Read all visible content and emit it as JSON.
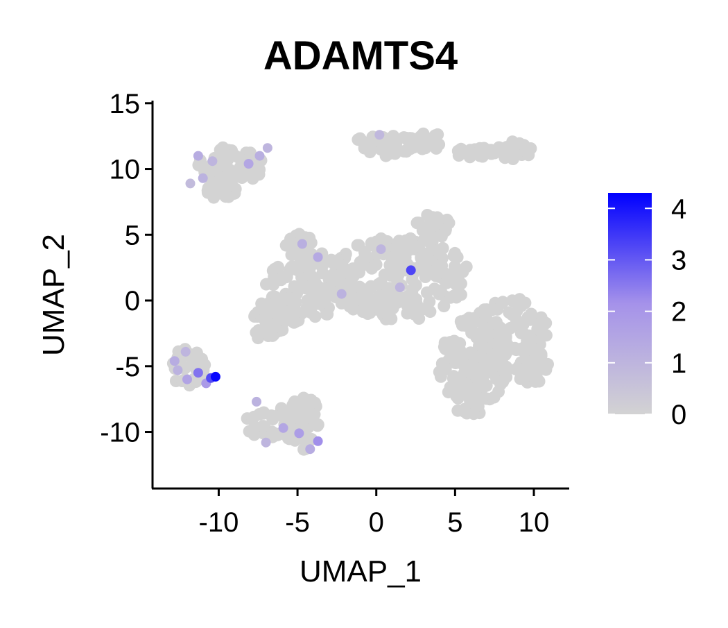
{
  "chart_data": {
    "type": "scatter",
    "title": "ADAMTS4",
    "xlabel": "UMAP_1",
    "ylabel": "UMAP_2",
    "xlim": [
      -14.2,
      12.2
    ],
    "ylim": [
      -14.3,
      15.2
    ],
    "x_ticks": [
      -10,
      -5,
      0,
      5,
      10
    ],
    "x_tick_labels": [
      "-10",
      "-5",
      "0",
      "5",
      "10"
    ],
    "y_ticks": [
      -10,
      -5,
      0,
      5,
      10,
      15
    ],
    "y_tick_labels": [
      "-10",
      "-5",
      "0",
      "5",
      "10",
      "15"
    ],
    "grid": false,
    "legend": {
      "type": "colorbar",
      "placement": "right",
      "range": [
        0,
        4.3
      ],
      "ticks": [
        0,
        1,
        2,
        3,
        4
      ],
      "tick_labels": [
        "0",
        "1",
        "2",
        "3",
        "4"
      ],
      "low_color": "#d3d3d3",
      "high_color": "#0000ff"
    },
    "clusters": [
      {
        "cx": 1.5,
        "cy": 1.7,
        "rx": 4.4,
        "ry": 3.2
      },
      {
        "cx": -4.0,
        "cy": 1.2,
        "rx": 3.0,
        "ry": 2.6
      },
      {
        "cx": -6.2,
        "cy": -0.9,
        "rx": 1.6,
        "ry": 1.3
      },
      {
        "cx": -6.8,
        "cy": -2.4,
        "rx": 0.9,
        "ry": 0.8
      },
      {
        "cx": 3.6,
        "cy": 5.5,
        "rx": 1.3,
        "ry": 1.1
      },
      {
        "cx": 3.5,
        "cy": 3.0,
        "rx": 0.8,
        "ry": 1.0
      },
      {
        "cx": -5.0,
        "cy": 4.5,
        "rx": 0.9,
        "ry": 0.6
      },
      {
        "cx": 8.5,
        "cy": -2.2,
        "rx": 2.4,
        "ry": 2.4
      },
      {
        "cx": 6.2,
        "cy": -4.6,
        "rx": 2.4,
        "ry": 3.3
      },
      {
        "cx": 6.0,
        "cy": -7.4,
        "rx": 1.2,
        "ry": 1.4
      },
      {
        "cx": 9.8,
        "cy": -4.8,
        "rx": 1.2,
        "ry": 1.6
      },
      {
        "cx": 0.7,
        "cy": 11.7,
        "rx": 2.6,
        "ry": 0.9
      },
      {
        "cx": 3.2,
        "cy": 12.1,
        "rx": 1.4,
        "ry": 0.6
      },
      {
        "cx": 6.0,
        "cy": 11.3,
        "rx": 1.6,
        "ry": 0.4
      },
      {
        "cx": 8.8,
        "cy": 11.4,
        "rx": 1.1,
        "ry": 0.7
      },
      {
        "cx": -9.3,
        "cy": 10.2,
        "rx": 2.1,
        "ry": 1.5
      },
      {
        "cx": -9.8,
        "cy": 8.6,
        "rx": 1.0,
        "ry": 1.0
      },
      {
        "cx": -12.0,
        "cy": -5.1,
        "rx": 1.2,
        "ry": 1.5
      },
      {
        "cx": -6.4,
        "cy": -9.4,
        "rx": 1.9,
        "ry": 1.3
      },
      {
        "cx": -4.6,
        "cy": -9.2,
        "rx": 1.0,
        "ry": 2.3
      }
    ],
    "expressing_points": [
      {
        "x": -11.3,
        "y": 11.0,
        "v": 1.3
      },
      {
        "x": -10.4,
        "y": 10.6,
        "v": 1.0
      },
      {
        "x": -8.1,
        "y": 10.4,
        "v": 1.5
      },
      {
        "x": -7.4,
        "y": 11.0,
        "v": 1.2
      },
      {
        "x": -11.0,
        "y": 9.3,
        "v": 1.1
      },
      {
        "x": -11.8,
        "y": 8.9,
        "v": 0.8
      },
      {
        "x": -6.9,
        "y": 11.6,
        "v": 1.0
      },
      {
        "x": -12.8,
        "y": -4.6,
        "v": 1.3
      },
      {
        "x": -12.1,
        "y": -3.9,
        "v": 1.0
      },
      {
        "x": -11.3,
        "y": -5.5,
        "v": 2.6
      },
      {
        "x": -10.2,
        "y": -5.8,
        "v": 4.2
      },
      {
        "x": -10.5,
        "y": -5.9,
        "v": 3.2
      },
      {
        "x": -12.0,
        "y": -6.0,
        "v": 1.6
      },
      {
        "x": -10.8,
        "y": -6.3,
        "v": 1.9
      },
      {
        "x": -12.6,
        "y": -5.3,
        "v": 1.1
      },
      {
        "x": -7.6,
        "y": -7.7,
        "v": 1.1
      },
      {
        "x": -5.9,
        "y": -9.7,
        "v": 1.5
      },
      {
        "x": -4.9,
        "y": -10.1,
        "v": 1.8
      },
      {
        "x": -3.7,
        "y": -10.7,
        "v": 2.2
      },
      {
        "x": -4.2,
        "y": -11.3,
        "v": 1.3
      },
      {
        "x": -7.0,
        "y": -10.8,
        "v": 1.0
      },
      {
        "x": -4.7,
        "y": 4.3,
        "v": 1.2
      },
      {
        "x": -3.7,
        "y": 3.3,
        "v": 1.4
      },
      {
        "x": 0.3,
        "y": 3.9,
        "v": 1.0
      },
      {
        "x": 2.2,
        "y": 2.3,
        "v": 3.3
      },
      {
        "x": 1.5,
        "y": 1.0,
        "v": 1.0
      },
      {
        "x": -2.2,
        "y": 0.5,
        "v": 1.1
      },
      {
        "x": 0.2,
        "y": 12.6,
        "v": 0.9
      }
    ]
  }
}
